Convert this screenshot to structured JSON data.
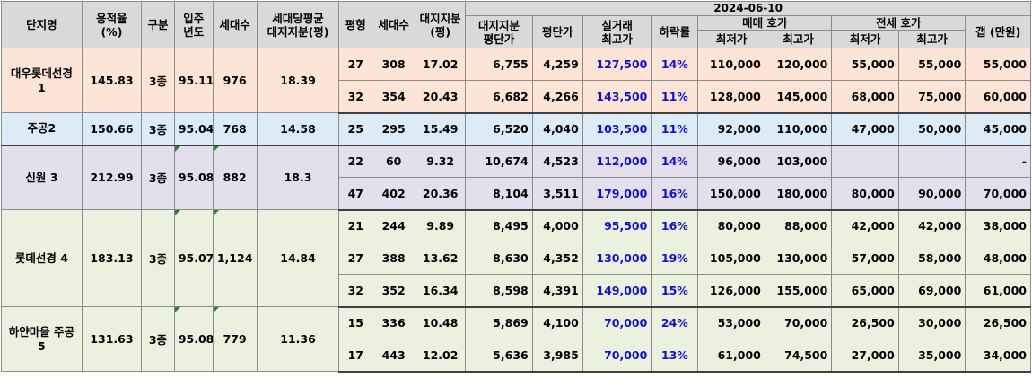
{
  "headers": {
    "name": "단지명",
    "far_line1": "용적율",
    "far_line2": "(%)",
    "zone": "구분",
    "move_in_line1": "입주",
    "move_in_line2": "년도",
    "households": "세대수",
    "avg_land_line1": "세대당평균",
    "avg_land_line2": "대지지분(평)",
    "pyeong": "평형",
    "unit_households": "세대수",
    "land_line1": "대지지분",
    "land_line2": "(평)",
    "date": "2024-06-10",
    "land_price_line1": "대지지분",
    "land_price_line2": "평단가",
    "price_per_pyeong": "평단가",
    "deal_line1": "실거래",
    "deal_line2": "최고가",
    "drop": "하락률",
    "sale_group": "매매 호가",
    "jeonse_group": "전세 호가",
    "min": "최저가",
    "max": "최고가",
    "gap": "갭 (만원)"
  },
  "complexes": [
    {
      "name": "대우롯데선경 1",
      "far": "145.83",
      "zone": "3종",
      "year": "95.11",
      "households": "976",
      "avg_land": "18.39",
      "units": [
        {
          "pyeong": "27",
          "households": "308",
          "land": "17.02",
          "land_price": "6,755",
          "price": "4,259",
          "deal_max": "127,500",
          "drop": "14%",
          "sale_min": "110,000",
          "sale_max": "120,000",
          "jeonse_min": "55,000",
          "jeonse_max": "55,000",
          "gap": "55,000"
        },
        {
          "pyeong": "32",
          "households": "354",
          "land": "20.43",
          "land_price": "6,682",
          "price": "4,266",
          "deal_max": "143,500",
          "drop": "11%",
          "sale_min": "128,000",
          "sale_max": "145,000",
          "jeonse_min": "68,000",
          "jeonse_max": "75,000",
          "gap": "60,000"
        }
      ]
    },
    {
      "name": "주공2",
      "far": "150.66",
      "zone": "3종",
      "year": "95.04",
      "households": "768",
      "avg_land": "14.58",
      "units": [
        {
          "pyeong": "25",
          "households": "295",
          "land": "15.49",
          "land_price": "6,520",
          "price": "4,040",
          "deal_max": "103,500",
          "drop": "11%",
          "sale_min": "92,000",
          "sale_max": "110,000",
          "jeonse_min": "47,000",
          "jeonse_max": "50,000",
          "gap": "45,000"
        }
      ]
    },
    {
      "name": "신원 3",
      "far": "212.99",
      "zone": "3종",
      "year": "95.08",
      "households": "882",
      "avg_land": "18.3",
      "units": [
        {
          "pyeong": "22",
          "households": "60",
          "land": "9.32",
          "land_price": "10,674",
          "price": "4,523",
          "deal_max": "112,000",
          "drop": "14%",
          "sale_min": "96,000",
          "sale_max": "103,000",
          "jeonse_min": "",
          "jeonse_max": "",
          "gap": "-"
        },
        {
          "pyeong": "47",
          "households": "402",
          "land": "20.36",
          "land_price": "8,104",
          "price": "3,511",
          "deal_max": "179,000",
          "drop": "16%",
          "sale_min": "150,000",
          "sale_max": "180,000",
          "jeonse_min": "80,000",
          "jeonse_max": "90,000",
          "gap": "70,000"
        }
      ]
    },
    {
      "name": "롯데선경 4",
      "far": "183.13",
      "zone": "3종",
      "year": "95.07",
      "households": "1,124",
      "avg_land": "14.84",
      "units": [
        {
          "pyeong": "21",
          "households": "244",
          "land": "9.89",
          "land_price": "8,495",
          "price": "4,000",
          "deal_max": "95,500",
          "drop": "16%",
          "sale_min": "80,000",
          "sale_max": "88,000",
          "jeonse_min": "42,000",
          "jeonse_max": "42,000",
          "gap": "38,000"
        },
        {
          "pyeong": "27",
          "households": "388",
          "land": "13.62",
          "land_price": "8,630",
          "price": "4,352",
          "deal_max": "130,000",
          "drop": "19%",
          "sale_min": "105,000",
          "sale_max": "130,000",
          "jeonse_min": "57,000",
          "jeonse_max": "58,000",
          "gap": "48,000"
        },
        {
          "pyeong": "32",
          "households": "352",
          "land": "16.34",
          "land_price": "8,598",
          "price": "4,391",
          "deal_max": "149,000",
          "drop": "15%",
          "sale_min": "126,000",
          "sale_max": "155,000",
          "jeonse_min": "65,000",
          "jeonse_max": "69,000",
          "gap": "61,000"
        }
      ]
    },
    {
      "name": "하얀마을 주공5",
      "far": "131.63",
      "zone": "3종",
      "year": "95.08",
      "households": "779",
      "avg_land": "11.36",
      "units": [
        {
          "pyeong": "15",
          "households": "336",
          "land": "10.48",
          "land_price": "5,869",
          "price": "4,100",
          "deal_max": "70,000",
          "drop": "24%",
          "sale_min": "53,000",
          "sale_max": "70,000",
          "jeonse_min": "26,500",
          "jeonse_max": "30,000",
          "gap": "26,500"
        },
        {
          "pyeong": "17",
          "households": "443",
          "land": "12.02",
          "land_price": "5,636",
          "price": "3,985",
          "deal_max": "70,000",
          "drop": "13%",
          "sale_min": "61,000",
          "sale_max": "74,500",
          "jeonse_min": "27,000",
          "jeonse_max": "35,000",
          "gap": "34,000"
        }
      ]
    }
  ]
}
